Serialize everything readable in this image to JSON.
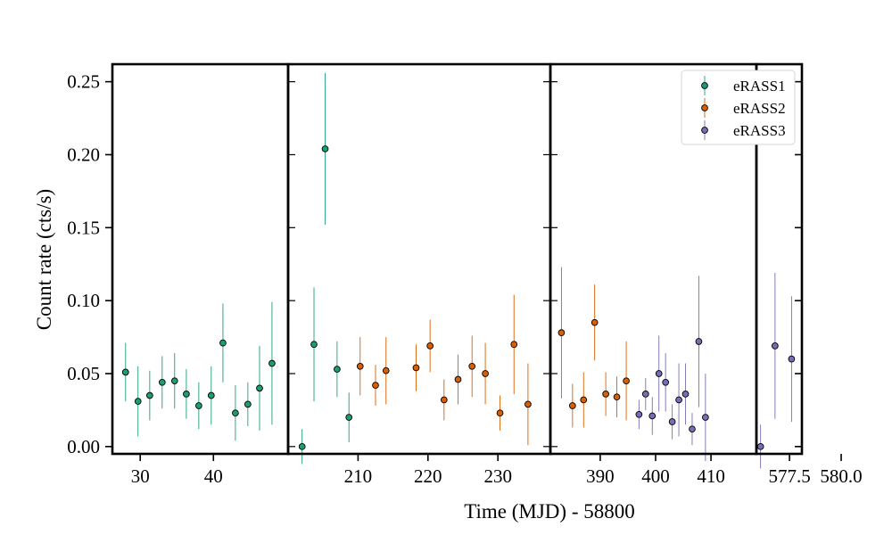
{
  "chart_data": {
    "type": "scatter",
    "error_bars": true,
    "xlabel": "Time (MJD) - 58800",
    "ylabel": "Count rate (cts/s)",
    "ylim": [
      -0.005,
      0.262
    ],
    "yticks": [
      {
        "value": 0.0,
        "label": "0.00"
      },
      {
        "value": 0.05,
        "label": "0.05"
      },
      {
        "value": 0.1,
        "label": "0.10"
      },
      {
        "value": 0.15,
        "label": "0.15"
      },
      {
        "value": 0.2,
        "label": "0.20"
      },
      {
        "value": 0.25,
        "label": "0.25"
      }
    ],
    "legend": {
      "placement": "top-right",
      "entries": [
        {
          "name": "eRASS1",
          "color": "#1b9e77"
        },
        {
          "name": "eRASS2",
          "color": "#d95f02"
        },
        {
          "name": "eRASS3",
          "color": "#7570b3"
        }
      ]
    },
    "panels": [
      {
        "xlim": [
          26.2,
          50.2
        ],
        "ticks": [
          {
            "value": 30,
            "label": "30"
          },
          {
            "value": 40,
            "label": "40"
          }
        ]
      },
      {
        "xlim": [
          200.0,
          237.5
        ],
        "ticks": [
          {
            "value": 210,
            "label": "210"
          },
          {
            "value": 220,
            "label": "220"
          },
          {
            "value": 230,
            "label": "230"
          }
        ]
      },
      {
        "xlim": [
          381.0,
          418.2
        ],
        "ticks": [
          {
            "value": 390,
            "label": "390"
          },
          {
            "value": 400,
            "label": "400"
          },
          {
            "value": 410,
            "label": "410"
          }
        ]
      },
      {
        "xlim": [
          575.9,
          578.1
        ],
        "ticks": [
          {
            "value": 577.5,
            "label": "577.5"
          },
          {
            "value": 580.0,
            "label": "580.0"
          }
        ]
      }
    ],
    "series": [
      {
        "name": "eRASS1",
        "color": "#1b9e77",
        "points": [
          {
            "x": 28.0,
            "y": 0.051,
            "err": 0.02
          },
          {
            "x": 29.7,
            "y": 0.031,
            "err": 0.024
          },
          {
            "x": 31.3,
            "y": 0.035,
            "err": 0.017
          },
          {
            "x": 33.0,
            "y": 0.044,
            "err": 0.018
          },
          {
            "x": 34.7,
            "y": 0.045,
            "err": 0.019
          },
          {
            "x": 36.3,
            "y": 0.036,
            "err": 0.017
          },
          {
            "x": 38.0,
            "y": 0.028,
            "err": 0.016
          },
          {
            "x": 39.7,
            "y": 0.035,
            "err": 0.02
          },
          {
            "x": 41.3,
            "y": 0.071,
            "err": 0.027
          },
          {
            "x": 43.0,
            "y": 0.023,
            "err": 0.019
          },
          {
            "x": 44.7,
            "y": 0.029,
            "err": 0.015
          },
          {
            "x": 46.3,
            "y": 0.04,
            "err": 0.029
          },
          {
            "x": 48.0,
            "y": 0.057,
            "err": 0.042
          },
          {
            "x": 202.0,
            "y": 0.0,
            "err": 0.012
          },
          {
            "x": 203.7,
            "y": 0.07,
            "err": 0.039
          },
          {
            "x": 205.3,
            "y": 0.204,
            "err": 0.052
          },
          {
            "x": 207.0,
            "y": 0.053,
            "err": 0.019
          },
          {
            "x": 208.7,
            "y": 0.02,
            "err": 0.017
          }
        ]
      },
      {
        "name": "eRASS2",
        "color": "#d95f02",
        "points": [
          {
            "x": 210.3,
            "y": 0.055,
            "err": 0.02
          },
          {
            "x": 212.5,
            "y": 0.042,
            "err": 0.014
          },
          {
            "x": 214.0,
            "y": 0.052,
            "err": 0.023
          },
          {
            "x": 218.3,
            "y": 0.054,
            "err": 0.016
          },
          {
            "x": 220.3,
            "y": 0.069,
            "err": 0.018
          },
          {
            "x": 222.3,
            "y": 0.032,
            "err": 0.014
          },
          {
            "x": 224.3,
            "y": 0.046,
            "err": 0.017
          },
          {
            "x": 226.3,
            "y": 0.055,
            "err": 0.021
          },
          {
            "x": 228.2,
            "y": 0.05,
            "err": 0.021
          },
          {
            "x": 230.3,
            "y": 0.023,
            "err": 0.012
          },
          {
            "x": 232.3,
            "y": 0.07,
            "err": 0.034
          },
          {
            "x": 234.3,
            "y": 0.029,
            "err": 0.028
          },
          {
            "x": 383.0,
            "y": 0.078,
            "err": 0.045
          },
          {
            "x": 385.0,
            "y": 0.028,
            "err": 0.015
          },
          {
            "x": 387.0,
            "y": 0.032,
            "err": 0.019
          },
          {
            "x": 389.0,
            "y": 0.085,
            "err": 0.026
          },
          {
            "x": 391.0,
            "y": 0.036,
            "err": 0.015
          },
          {
            "x": 393.0,
            "y": 0.034,
            "err": 0.014
          },
          {
            "x": 394.7,
            "y": 0.045,
            "err": 0.027
          }
        ]
      },
      {
        "name": "eRASS3",
        "color": "#7570b3",
        "points": [
          {
            "x": 397.0,
            "y": 0.022,
            "err": 0.01
          },
          {
            "x": 398.2,
            "y": 0.036,
            "err": 0.011
          },
          {
            "x": 399.4,
            "y": 0.021,
            "err": 0.013
          },
          {
            "x": 400.6,
            "y": 0.05,
            "err": 0.026
          },
          {
            "x": 401.8,
            "y": 0.044,
            "err": 0.02
          },
          {
            "x": 403.0,
            "y": 0.017,
            "err": 0.012
          },
          {
            "x": 404.2,
            "y": 0.032,
            "err": 0.025
          },
          {
            "x": 405.4,
            "y": 0.036,
            "err": 0.021
          },
          {
            "x": 406.6,
            "y": 0.012,
            "err": 0.011
          },
          {
            "x": 407.8,
            "y": 0.072,
            "err": 0.045
          },
          {
            "x": 409.0,
            "y": 0.02,
            "err": 0.03
          },
          {
            "x": 576.1,
            "y": 0.0,
            "err": 0.015
          },
          {
            "x": 576.8,
            "y": 0.069,
            "err": 0.05
          },
          {
            "x": 577.6,
            "y": 0.06,
            "err": 0.043
          }
        ]
      }
    ]
  }
}
